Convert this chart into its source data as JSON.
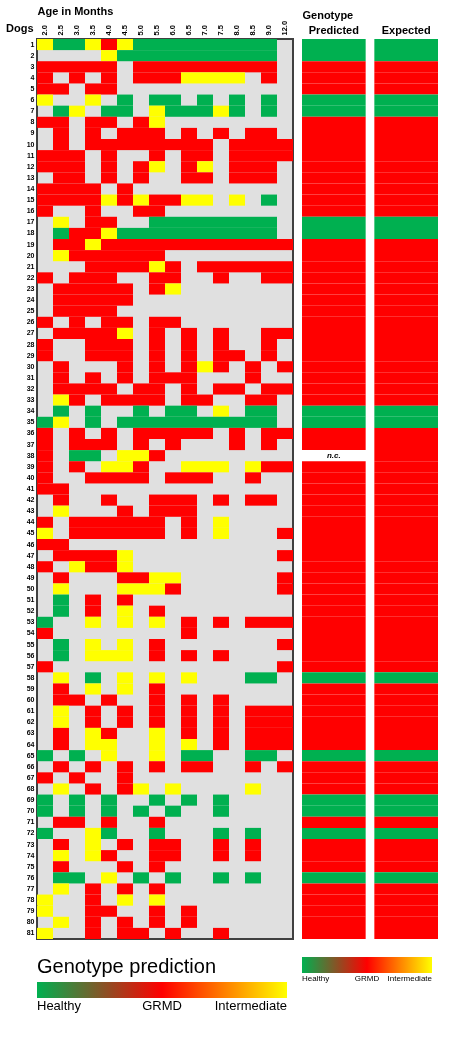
{
  "chart_data": [
    {
      "type": "heatmap",
      "xlabel": "Age in Months",
      "ylabel": "Dogs",
      "clabel": "Genotype prediction",
      "clim": [
        0,
        2
      ],
      "categories": [
        "2.0",
        "2.5",
        "3.0",
        "3.5",
        "4.0",
        "4.5",
        "5.0",
        "5.5",
        "6.0",
        "6.5",
        "7.0",
        "7.5",
        "8.0",
        "8.5",
        "9.0",
        "12.0"
      ],
      "y_categories": [
        "1",
        "2",
        "3",
        "4",
        "5",
        "6",
        "7",
        "8",
        "9",
        "10",
        "11",
        "12",
        "13",
        "14",
        "15",
        "16",
        "17",
        "18",
        "19",
        "20",
        "21",
        "22",
        "23",
        "24",
        "25",
        "26",
        "27",
        "28",
        "29",
        "30",
        "31",
        "32",
        "33",
        "34",
        "35",
        "36",
        "37",
        "38",
        "39",
        "40",
        "41",
        "42",
        "43",
        "44",
        "45",
        "46",
        "47",
        "48",
        "49",
        "50",
        "51",
        "52",
        "53",
        "54",
        "55",
        "56",
        "57",
        "58",
        "59",
        "60",
        "61",
        "62",
        "63",
        "64",
        "65",
        "66",
        "67",
        "68",
        "69",
        "70",
        "71",
        "72",
        "73",
        "74",
        "75",
        "76",
        "77",
        "78",
        "79",
        "80",
        "81"
      ],
      "cticks": [
        {
          "value": 0,
          "label": "Healthy"
        },
        {
          "value": 1,
          "label": "GRMD"
        },
        {
          "value": 2,
          "label": "Intermediate"
        }
      ],
      "colors": [
        "#00b050",
        "#ff0000",
        "#ffff00"
      ],
      "cells": [
        [
          2,
          0,
          0,
          2,
          1,
          2,
          0,
          0,
          0,
          0,
          0,
          0,
          0,
          0,
          0,
          null
        ],
        [
          null,
          null,
          null,
          null,
          2,
          0,
          0,
          0,
          0,
          0,
          0,
          0,
          0,
          0,
          0,
          null
        ],
        [
          1,
          1,
          1,
          1,
          1,
          null,
          1,
          1,
          1,
          1,
          1,
          1,
          1,
          1,
          1,
          null
        ],
        [
          1,
          null,
          1,
          null,
          1,
          null,
          1,
          1,
          1,
          2,
          2,
          2,
          2,
          null,
          1,
          null
        ],
        [
          1,
          1,
          null,
          1,
          1,
          null,
          null,
          null,
          null,
          null,
          null,
          null,
          null,
          null,
          null,
          null
        ],
        [
          2,
          null,
          null,
          2,
          null,
          0,
          null,
          0,
          0,
          null,
          0,
          null,
          0,
          null,
          0,
          null
        ],
        [
          null,
          0,
          2,
          null,
          0,
          0,
          null,
          2,
          0,
          0,
          0,
          2,
          0,
          null,
          0,
          null
        ],
        [
          1,
          1,
          null,
          1,
          1,
          null,
          1,
          2,
          null,
          null,
          null,
          null,
          null,
          null,
          null,
          null
        ],
        [
          null,
          1,
          null,
          1,
          null,
          1,
          1,
          1,
          null,
          1,
          null,
          1,
          null,
          1,
          1,
          null
        ],
        [
          null,
          1,
          null,
          1,
          1,
          1,
          1,
          1,
          1,
          1,
          1,
          null,
          1,
          1,
          1,
          1
        ],
        [
          1,
          1,
          1,
          null,
          1,
          null,
          null,
          1,
          null,
          1,
          1,
          null,
          1,
          1,
          1,
          1
        ],
        [
          1,
          1,
          1,
          null,
          1,
          null,
          1,
          2,
          null,
          1,
          2,
          null,
          1,
          1,
          1,
          null
        ],
        [
          null,
          1,
          1,
          null,
          1,
          null,
          1,
          null,
          null,
          1,
          1,
          null,
          1,
          1,
          1,
          null
        ],
        [
          1,
          1,
          1,
          1,
          null,
          1,
          null,
          null,
          null,
          null,
          null,
          null,
          null,
          null,
          null,
          null
        ],
        [
          1,
          1,
          1,
          1,
          2,
          1,
          2,
          1,
          1,
          2,
          2,
          null,
          2,
          null,
          0,
          null
        ],
        [
          1,
          null,
          null,
          1,
          null,
          null,
          1,
          1,
          null,
          null,
          null,
          null,
          null,
          null,
          null,
          null
        ],
        [
          null,
          2,
          null,
          1,
          1,
          null,
          null,
          0,
          0,
          0,
          0,
          0,
          0,
          0,
          0,
          null
        ],
        [
          null,
          0,
          1,
          1,
          2,
          0,
          0,
          0,
          0,
          0,
          0,
          0,
          0,
          0,
          0,
          null
        ],
        [
          null,
          1,
          1,
          2,
          1,
          1,
          1,
          1,
          1,
          1,
          1,
          1,
          1,
          1,
          1,
          1
        ],
        [
          null,
          2,
          1,
          1,
          1,
          1,
          1,
          1,
          null,
          null,
          null,
          null,
          null,
          null,
          null,
          null
        ],
        [
          null,
          null,
          null,
          1,
          1,
          1,
          1,
          2,
          1,
          null,
          1,
          1,
          1,
          1,
          1,
          1
        ],
        [
          1,
          null,
          1,
          1,
          1,
          null,
          null,
          1,
          1,
          null,
          null,
          1,
          null,
          null,
          1,
          1
        ],
        [
          null,
          1,
          1,
          1,
          1,
          1,
          null,
          1,
          2,
          null,
          null,
          null,
          null,
          null,
          null,
          null
        ],
        [
          null,
          1,
          1,
          1,
          1,
          1,
          null,
          null,
          null,
          null,
          null,
          null,
          null,
          null,
          null,
          null
        ],
        [
          null,
          1,
          1,
          1,
          1,
          null,
          null,
          null,
          null,
          null,
          null,
          null,
          null,
          null,
          null,
          null
        ],
        [
          1,
          null,
          1,
          null,
          1,
          1,
          null,
          1,
          1,
          null,
          null,
          null,
          null,
          null,
          null,
          null
        ],
        [
          null,
          1,
          1,
          1,
          1,
          2,
          null,
          1,
          null,
          1,
          null,
          1,
          null,
          null,
          1,
          1
        ],
        [
          1,
          null,
          null,
          1,
          1,
          1,
          null,
          1,
          null,
          1,
          null,
          1,
          null,
          null,
          1,
          null
        ],
        [
          1,
          null,
          null,
          1,
          1,
          1,
          null,
          1,
          null,
          1,
          null,
          1,
          1,
          null,
          1,
          null
        ],
        [
          null,
          1,
          null,
          null,
          null,
          1,
          null,
          1,
          null,
          1,
          2,
          1,
          null,
          1,
          null,
          1
        ],
        [
          null,
          1,
          null,
          1,
          null,
          1,
          null,
          1,
          1,
          1,
          null,
          null,
          null,
          1,
          null,
          null
        ],
        [
          null,
          1,
          1,
          1,
          1,
          null,
          1,
          1,
          null,
          1,
          null,
          1,
          1,
          null,
          1,
          1
        ],
        [
          null,
          2,
          1,
          null,
          1,
          1,
          1,
          1,
          null,
          1,
          1,
          null,
          null,
          1,
          1,
          null
        ],
        [
          null,
          0,
          null,
          0,
          null,
          null,
          0,
          null,
          0,
          0,
          null,
          2,
          null,
          0,
          0,
          null
        ],
        [
          0,
          2,
          null,
          0,
          null,
          0,
          0,
          0,
          0,
          0,
          0,
          0,
          0,
          0,
          0,
          null
        ],
        [
          1,
          null,
          1,
          null,
          1,
          null,
          1,
          1,
          1,
          1,
          1,
          null,
          1,
          null,
          1,
          1
        ],
        [
          1,
          null,
          1,
          1,
          1,
          null,
          1,
          null,
          1,
          null,
          null,
          null,
          1,
          null,
          1,
          null
        ],
        [
          1,
          null,
          0,
          0,
          null,
          2,
          2,
          1,
          null,
          null,
          null,
          null,
          null,
          null,
          null,
          null
        ],
        [
          1,
          null,
          1,
          null,
          2,
          2,
          1,
          null,
          null,
          2,
          2,
          2,
          null,
          2,
          1,
          1
        ],
        [
          1,
          null,
          null,
          1,
          1,
          1,
          1,
          null,
          1,
          1,
          1,
          null,
          null,
          1,
          null,
          null
        ],
        [
          1,
          1,
          null,
          null,
          null,
          null,
          null,
          null,
          null,
          null,
          null,
          null,
          null,
          null,
          null,
          null
        ],
        [
          null,
          1,
          null,
          null,
          1,
          null,
          null,
          1,
          1,
          1,
          null,
          1,
          null,
          1,
          1,
          null
        ],
        [
          null,
          2,
          null,
          null,
          null,
          1,
          null,
          1,
          1,
          1,
          null,
          null,
          null,
          null,
          null,
          null
        ],
        [
          1,
          null,
          1,
          1,
          1,
          1,
          1,
          1,
          null,
          1,
          null,
          2,
          null,
          null,
          null,
          null
        ],
        [
          2,
          null,
          1,
          1,
          1,
          1,
          1,
          1,
          null,
          1,
          null,
          2,
          null,
          null,
          null,
          1
        ],
        [
          1,
          1,
          null,
          null,
          null,
          null,
          null,
          null,
          null,
          null,
          null,
          null,
          null,
          null,
          null,
          null
        ],
        [
          null,
          1,
          1,
          1,
          1,
          2,
          null,
          null,
          null,
          null,
          null,
          null,
          null,
          null,
          null,
          1
        ],
        [
          1,
          null,
          2,
          1,
          1,
          2,
          null,
          null,
          null,
          null,
          null,
          null,
          null,
          null,
          null,
          null
        ],
        [
          null,
          1,
          null,
          null,
          null,
          1,
          1,
          2,
          2,
          null,
          null,
          null,
          null,
          null,
          null,
          1
        ],
        [
          null,
          2,
          null,
          null,
          null,
          2,
          2,
          2,
          1,
          null,
          null,
          null,
          null,
          null,
          null,
          1
        ],
        [
          null,
          0,
          null,
          1,
          null,
          1,
          null,
          null,
          null,
          null,
          null,
          null,
          null,
          null,
          null,
          null
        ],
        [
          null,
          0,
          null,
          1,
          null,
          2,
          null,
          1,
          null,
          null,
          null,
          null,
          null,
          null,
          null,
          null
        ],
        [
          0,
          null,
          null,
          2,
          null,
          2,
          null,
          2,
          null,
          1,
          null,
          1,
          null,
          1,
          1,
          1
        ],
        [
          1,
          null,
          null,
          null,
          null,
          null,
          null,
          null,
          null,
          1,
          null,
          null,
          null,
          null,
          null,
          null
        ],
        [
          null,
          0,
          null,
          2,
          null,
          2,
          null,
          1,
          null,
          null,
          null,
          null,
          null,
          null,
          null,
          1
        ],
        [
          null,
          0,
          null,
          2,
          2,
          2,
          null,
          1,
          null,
          1,
          null,
          1,
          null,
          null,
          null,
          null
        ],
        [
          1,
          null,
          null,
          null,
          null,
          null,
          null,
          null,
          null,
          null,
          null,
          null,
          null,
          null,
          null,
          1
        ],
        [
          null,
          2,
          null,
          0,
          null,
          2,
          null,
          2,
          null,
          2,
          null,
          null,
          null,
          0,
          0,
          null
        ],
        [
          null,
          1,
          null,
          2,
          null,
          2,
          null,
          1,
          null,
          null,
          null,
          null,
          null,
          null,
          null,
          null
        ],
        [
          null,
          1,
          1,
          null,
          1,
          null,
          null,
          1,
          null,
          1,
          null,
          1,
          null,
          null,
          null,
          null
        ],
        [
          null,
          2,
          null,
          1,
          null,
          1,
          null,
          1,
          null,
          1,
          null,
          1,
          null,
          1,
          1,
          1
        ],
        [
          null,
          2,
          null,
          1,
          null,
          1,
          null,
          1,
          null,
          1,
          null,
          1,
          null,
          1,
          1,
          1
        ],
        [
          null,
          1,
          null,
          2,
          1,
          null,
          null,
          2,
          null,
          1,
          null,
          1,
          null,
          1,
          1,
          1
        ],
        [
          null,
          1,
          null,
          2,
          2,
          null,
          null,
          2,
          null,
          2,
          null,
          1,
          null,
          1,
          1,
          1
        ],
        [
          0,
          null,
          0,
          null,
          2,
          null,
          null,
          2,
          null,
          0,
          0,
          null,
          null,
          0,
          0,
          null
        ],
        [
          null,
          1,
          null,
          1,
          null,
          1,
          null,
          1,
          null,
          1,
          1,
          null,
          null,
          1,
          null,
          1
        ],
        [
          1,
          null,
          1,
          null,
          null,
          1,
          null,
          null,
          null,
          null,
          null,
          null,
          null,
          null,
          null,
          null
        ],
        [
          null,
          2,
          null,
          1,
          null,
          1,
          2,
          null,
          2,
          null,
          null,
          null,
          null,
          2,
          null,
          null
        ],
        [
          0,
          null,
          0,
          null,
          0,
          null,
          null,
          0,
          null,
          0,
          null,
          0,
          null,
          null,
          null,
          null
        ],
        [
          0,
          null,
          0,
          null,
          0,
          null,
          0,
          null,
          0,
          null,
          null,
          0,
          null,
          null,
          null,
          null
        ],
        [
          null,
          1,
          1,
          null,
          1,
          null,
          null,
          1,
          null,
          null,
          null,
          null,
          null,
          null,
          null,
          null
        ],
        [
          0,
          null,
          null,
          2,
          0,
          null,
          null,
          0,
          null,
          null,
          null,
          0,
          null,
          0,
          null,
          null
        ],
        [
          null,
          1,
          null,
          2,
          null,
          1,
          null,
          1,
          1,
          null,
          null,
          1,
          null,
          1,
          null,
          null
        ],
        [
          null,
          2,
          null,
          2,
          1,
          null,
          null,
          1,
          1,
          null,
          null,
          1,
          null,
          1,
          null,
          null
        ],
        [
          null,
          1,
          null,
          null,
          null,
          1,
          null,
          1,
          null,
          null,
          null,
          null,
          null,
          null,
          null,
          null
        ],
        [
          null,
          0,
          0,
          null,
          2,
          null,
          0,
          null,
          0,
          null,
          null,
          0,
          null,
          0,
          null,
          null
        ],
        [
          null,
          2,
          null,
          1,
          null,
          1,
          null,
          1,
          null,
          null,
          null,
          null,
          null,
          null,
          null,
          null
        ],
        [
          2,
          null,
          null,
          1,
          null,
          2,
          null,
          2,
          null,
          null,
          null,
          null,
          null,
          null,
          null,
          null
        ],
        [
          2,
          null,
          null,
          1,
          1,
          null,
          null,
          1,
          null,
          1,
          null,
          null,
          null,
          null,
          null,
          null
        ],
        [
          null,
          2,
          null,
          1,
          null,
          1,
          null,
          1,
          null,
          1,
          null,
          null,
          null,
          null,
          null,
          null
        ],
        [
          2,
          null,
          null,
          1,
          null,
          1,
          1,
          null,
          1,
          null,
          null,
          1,
          null,
          null,
          null,
          null
        ]
      ]
    },
    {
      "type": "heatmap",
      "xlabel": "Genotype",
      "tick_labels": "x",
      "categories": [
        "Predicted",
        "Expected"
      ],
      "y_categories": [
        "1",
        "2",
        "3",
        "4",
        "5",
        "6",
        "7",
        "8",
        "9",
        "10",
        "11",
        "12",
        "13",
        "14",
        "15",
        "16",
        "17",
        "18",
        "19",
        "20",
        "21",
        "22",
        "23",
        "24",
        "25",
        "26",
        "27",
        "28",
        "29",
        "30",
        "31",
        "32",
        "33",
        "34",
        "35",
        "36",
        "37",
        "38",
        "39",
        "40",
        "41",
        "42",
        "43",
        "44",
        "45",
        "46",
        "47",
        "48",
        "49",
        "50",
        "51",
        "52",
        "53",
        "54",
        "55",
        "56",
        "57",
        "58",
        "59",
        "60",
        "61",
        "62",
        "63",
        "64",
        "65",
        "66",
        "67",
        "68",
        "69",
        "70",
        "71",
        "72",
        "73",
        "74",
        "75",
        "76",
        "77",
        "78",
        "79",
        "80",
        "81"
      ],
      "clim": [
        0,
        2
      ],
      "cticks": [
        {
          "value": 0,
          "label": "Healthy"
        },
        {
          "value": 1,
          "label": "GRMD"
        },
        {
          "value": 2,
          "label": "Intermediate"
        }
      ],
      "colors": [
        "#00b050",
        "#ff0000",
        "#ffff00"
      ],
      "cells": [
        [
          0,
          0
        ],
        [
          0,
          0
        ],
        [
          1,
          1
        ],
        [
          1,
          1
        ],
        [
          1,
          1
        ],
        [
          0,
          0
        ],
        [
          0,
          0
        ],
        [
          1,
          1
        ],
        [
          1,
          1
        ],
        [
          1,
          1
        ],
        [
          1,
          1
        ],
        [
          1,
          1
        ],
        [
          1,
          1
        ],
        [
          1,
          1
        ],
        [
          1,
          1
        ],
        [
          1,
          1
        ],
        [
          0,
          0
        ],
        [
          0,
          0
        ],
        [
          1,
          1
        ],
        [
          1,
          1
        ],
        [
          1,
          1
        ],
        [
          1,
          1
        ],
        [
          1,
          1
        ],
        [
          1,
          1
        ],
        [
          1,
          1
        ],
        [
          1,
          1
        ],
        [
          1,
          1
        ],
        [
          1,
          1
        ],
        [
          1,
          1
        ],
        [
          1,
          1
        ],
        [
          1,
          1
        ],
        [
          1,
          1
        ],
        [
          1,
          1
        ],
        [
          0,
          0
        ],
        [
          0,
          0
        ],
        [
          1,
          1
        ],
        [
          1,
          1
        ],
        [
          null,
          1
        ],
        [
          1,
          1
        ],
        [
          1,
          1
        ],
        [
          1,
          1
        ],
        [
          1,
          1
        ],
        [
          1,
          1
        ],
        [
          1,
          1
        ],
        [
          1,
          1
        ],
        [
          1,
          1
        ],
        [
          1,
          1
        ],
        [
          1,
          1
        ],
        [
          1,
          1
        ],
        [
          1,
          1
        ],
        [
          1,
          1
        ],
        [
          1,
          1
        ],
        [
          1,
          1
        ],
        [
          1,
          1
        ],
        [
          1,
          1
        ],
        [
          1,
          1
        ],
        [
          1,
          1
        ],
        [
          0,
          0
        ],
        [
          1,
          1
        ],
        [
          1,
          1
        ],
        [
          1,
          1
        ],
        [
          1,
          1
        ],
        [
          1,
          1
        ],
        [
          1,
          1
        ],
        [
          0,
          0
        ],
        [
          1,
          1
        ],
        [
          1,
          1
        ],
        [
          1,
          1
        ],
        [
          0,
          0
        ],
        [
          0,
          0
        ],
        [
          1,
          1
        ],
        [
          0,
          0
        ],
        [
          1,
          1
        ],
        [
          1,
          1
        ],
        [
          1,
          1
        ],
        [
          0,
          0
        ],
        [
          1,
          1
        ],
        [
          1,
          1
        ],
        [
          1,
          1
        ],
        [
          1,
          1
        ],
        [
          1,
          1
        ]
      ],
      "cell_labels": [
        [
          null,
          null
        ],
        [
          null,
          null
        ],
        [
          null,
          null
        ],
        [
          null,
          null
        ],
        [
          null,
          null
        ],
        [
          null,
          null
        ],
        [
          null,
          null
        ],
        [
          null,
          null
        ],
        [
          null,
          null
        ],
        [
          null,
          null
        ],
        [
          null,
          null
        ],
        [
          null,
          null
        ],
        [
          null,
          null
        ],
        [
          null,
          null
        ],
        [
          null,
          null
        ],
        [
          null,
          null
        ],
        [
          null,
          null
        ],
        [
          null,
          null
        ],
        [
          null,
          null
        ],
        [
          null,
          null
        ],
        [
          null,
          null
        ],
        [
          null,
          null
        ],
        [
          null,
          null
        ],
        [
          null,
          null
        ],
        [
          null,
          null
        ],
        [
          null,
          null
        ],
        [
          null,
          null
        ],
        [
          null,
          null
        ],
        [
          null,
          null
        ],
        [
          null,
          null
        ],
        [
          null,
          null
        ],
        [
          null,
          null
        ],
        [
          null,
          null
        ],
        [
          null,
          null
        ],
        [
          null,
          null
        ],
        [
          null,
          null
        ],
        [
          null,
          null
        ],
        [
          "n.c.",
          null
        ],
        [
          null,
          null
        ],
        [
          null,
          null
        ],
        [
          null,
          null
        ],
        [
          null,
          null
        ],
        [
          null,
          null
        ],
        [
          null,
          null
        ],
        [
          null,
          null
        ],
        [
          null,
          null
        ],
        [
          null,
          null
        ],
        [
          null,
          null
        ],
        [
          null,
          null
        ],
        [
          null,
          null
        ],
        [
          null,
          null
        ],
        [
          null,
          null
        ],
        [
          null,
          null
        ],
        [
          null,
          null
        ],
        [
          null,
          null
        ],
        [
          null,
          null
        ],
        [
          null,
          null
        ],
        [
          null,
          null
        ],
        [
          null,
          null
        ],
        [
          null,
          null
        ],
        [
          null,
          null
        ],
        [
          null,
          null
        ],
        [
          null,
          null
        ],
        [
          null,
          null
        ],
        [
          null,
          null
        ],
        [
          null,
          null
        ],
        [
          null,
          null
        ],
        [
          null,
          null
        ],
        [
          null,
          null
        ],
        [
          null,
          null
        ],
        [
          null,
          null
        ],
        [
          null,
          null
        ],
        [
          null,
          null
        ],
        [
          null,
          null
        ],
        [
          null,
          null
        ],
        [
          null,
          null
        ],
        [
          null,
          null
        ],
        [
          null,
          null
        ],
        [
          null,
          null
        ],
        [
          null,
          null
        ],
        [
          null,
          null
        ]
      ]
    }
  ]
}
